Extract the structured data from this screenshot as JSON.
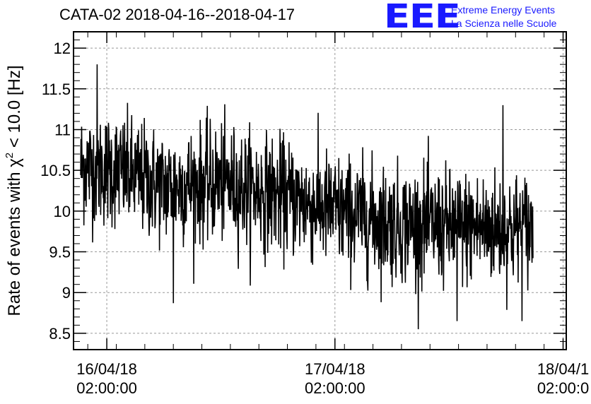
{
  "title": "CATA-02 2018-04-16--2018-04-17",
  "logo": {
    "letters": "EEE",
    "line1": "Extreme Energy Events",
    "line2": "La Scienza nelle Scuole"
  },
  "chart_data": {
    "type": "line",
    "title": "CATA-02 2018-04-16--2018-04-17",
    "xlabel": "",
    "ylabel": "Rate of events with χ² < 10.0 [Hz]",
    "ylabel_parts": {
      "pre": "Rate of events with ",
      "chi": "χ",
      "sup": "2",
      "post": " < 10.0 [Hz]"
    },
    "ylim": [
      8.3,
      12.2
    ],
    "yticks": [
      8.5,
      9,
      9.5,
      10,
      10.5,
      11,
      11.5,
      12
    ],
    "ytick_labels": [
      "8.5",
      "9",
      "9.5",
      "10",
      "10.5",
      "11",
      "11.5",
      "12"
    ],
    "xlim": [
      "2018-04-15 22:30:00",
      "2018-04-18 02:20:00"
    ],
    "xticks": [
      {
        "time": "2018-04-16 02:00:00",
        "date": "16/04/18",
        "clock": "02:00:00"
      },
      {
        "time": "2018-04-17 02:00:00",
        "date": "17/04/18",
        "clock": "02:00:00"
      },
      {
        "time": "2018-04-18 02:00:00",
        "date": "18/04/1",
        "clock": "02:00:0"
      }
    ],
    "grid": true,
    "series": [
      {
        "color": "#000000",
        "x_start": "2018-04-15 23:15:00",
        "x_end": "2018-04-17 22:50:00",
        "mean_trend": [
          {
            "x": "2018-04-15 23:15:00",
            "y": 10.55
          },
          {
            "x": "2018-04-16 03:00:00",
            "y": 10.5
          },
          {
            "x": "2018-04-16 08:00:00",
            "y": 10.3
          },
          {
            "x": "2018-04-16 14:00:00",
            "y": 10.35
          },
          {
            "x": "2018-04-16 20:00:00",
            "y": 10.2
          },
          {
            "x": "2018-04-17 02:00:00",
            "y": 10.0
          },
          {
            "x": "2018-04-17 08:00:00",
            "y": 9.85
          },
          {
            "x": "2018-04-17 14:00:00",
            "y": 9.8
          },
          {
            "x": "2018-04-17 22:50:00",
            "y": 9.78
          }
        ],
        "noise_sd": 0.35,
        "extremes": [
          {
            "x": "2018-04-16 01:00:00",
            "y": 11.8
          },
          {
            "x": "2018-04-16 09:00:00",
            "y": 8.87
          },
          {
            "x": "2018-04-17 14:50:00",
            "y": 8.65
          },
          {
            "x": "2018-04-17 19:40:00",
            "y": 11.3
          },
          {
            "x": "2018-04-17 21:40:00",
            "y": 8.65
          }
        ]
      }
    ]
  }
}
